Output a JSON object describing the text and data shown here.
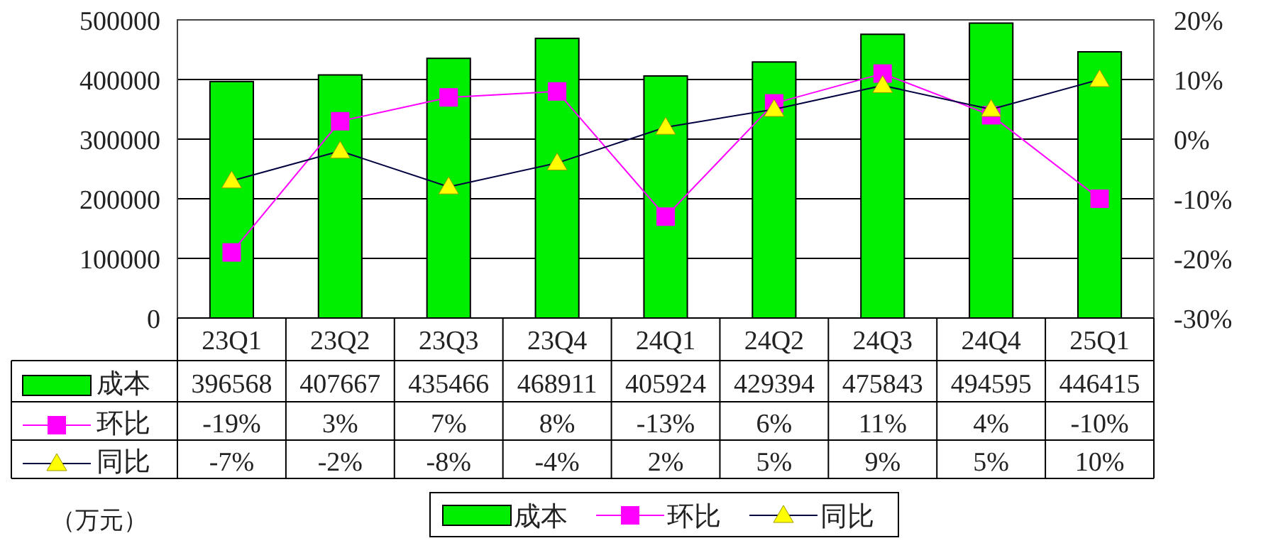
{
  "chart_data": {
    "type": "bar",
    "categories": [
      "23Q1",
      "23Q2",
      "23Q3",
      "23Q4",
      "24Q1",
      "24Q2",
      "24Q3",
      "24Q4",
      "25Q1"
    ],
    "series": [
      {
        "name": "成本",
        "color": "#00ee00",
        "values": [
          396568,
          407667,
          435466,
          468911,
          405924,
          429394,
          475843,
          494595,
          446415
        ]
      },
      {
        "name": "环比",
        "type": "line",
        "axis": "y2",
        "marker": "square",
        "color": "#ff00ff",
        "values": [
          -19,
          3,
          7,
          8,
          -13,
          6,
          11,
          4,
          -10
        ],
        "value_labels": [
          "-19%",
          "3%",
          "7%",
          "8%",
          "-13%",
          "6%",
          "11%",
          "4%",
          "-10%"
        ]
      },
      {
        "name": "同比",
        "type": "line",
        "axis": "y2",
        "marker": "triangle",
        "color": "#000040",
        "values": [
          -7,
          -2,
          -8,
          -4,
          2,
          5,
          9,
          5,
          10
        ],
        "value_labels": [
          "-7%",
          "-2%",
          "-8%",
          "-4%",
          "2%",
          "5%",
          "9%",
          "5%",
          "10%"
        ]
      }
    ],
    "ylim": [
      0,
      500000
    ],
    "yticks": [
      0,
      100000,
      200000,
      300000,
      400000,
      500000
    ],
    "y2lim": [
      -30,
      20
    ],
    "y2ticks": [
      {
        "value": -30,
        "label": "-30%"
      },
      {
        "value": -20,
        "label": "-20%"
      },
      {
        "value": -10,
        "label": "-10%"
      },
      {
        "value": 0,
        "label": "0%"
      },
      {
        "value": 10,
        "label": "10%"
      },
      {
        "value": 20,
        "label": "20%"
      }
    ],
    "grid": "y",
    "data_labels": true,
    "legend": "bottom",
    "annotations": [
      "（万元）"
    ]
  }
}
